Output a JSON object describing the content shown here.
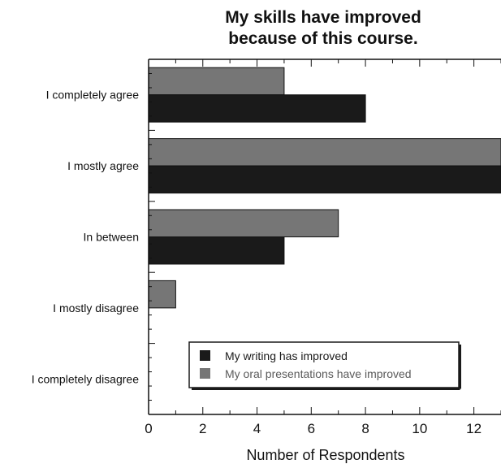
{
  "chart_data": {
    "type": "bar",
    "orientation": "horizontal",
    "title": [
      "My skills have improved",
      "because of this course."
    ],
    "xlabel": "Number of Respondents",
    "ylabel": "",
    "xlim": [
      0,
      13
    ],
    "xticks": [
      0,
      2,
      4,
      6,
      8,
      10,
      12
    ],
    "categories": [
      "I completely agree",
      "I mostly agree",
      "In between",
      "I mostly disagree",
      "I completely disagree"
    ],
    "series": [
      {
        "name": "My writing has improved",
        "color": "#1a1a1a",
        "values": [
          8,
          13,
          5,
          0,
          0
        ]
      },
      {
        "name": "My oral presentations have improved",
        "color": "#767676",
        "values": [
          5,
          13,
          7,
          1,
          0
        ]
      }
    ],
    "grid": false,
    "legend_position": "bottom-right inside plot"
  }
}
